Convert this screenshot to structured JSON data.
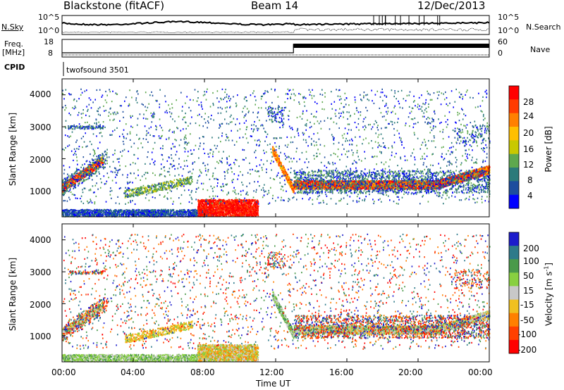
{
  "header": {
    "station": "Blackstone (fitACF)",
    "beam": "Beam 14",
    "date": "12/Dec/2013"
  },
  "left_labels": {
    "nsky": "N.Sky",
    "freq_line1": "Freq.",
    "freq_line2": "[MHz]",
    "cpid": "CPID"
  },
  "right_labels": {
    "nsearch": "N.Search",
    "nave": "Nave"
  },
  "noise_panel": {
    "left_ticks": [
      "10^5",
      "10^0"
    ],
    "right_ticks": [
      "10^5",
      "10^0"
    ]
  },
  "freq_panel": {
    "left_ticks": [
      "18",
      "8"
    ],
    "right_ticks": [
      "60",
      "0"
    ]
  },
  "cpid_text": "twofsound 3501",
  "chart_data": [
    {
      "type": "heatmap",
      "name": "power",
      "ylabel": "Slant Range [km]",
      "ylim": [
        180,
        4500
      ],
      "yticks": [
        "4000",
        "3000",
        "2000",
        "1000"
      ],
      "colorbar": {
        "label": "Power [dB]",
        "ticks": [
          "28",
          "24",
          "20",
          "16",
          "12",
          "8",
          "4"
        ],
        "colors": [
          "#ff0000",
          "#ff3c00",
          "#ff8000",
          "#ffbf00",
          "#c8c800",
          "#5ea84e",
          "#2b7a7a",
          "#1d4d9e",
          "#0000ff"
        ]
      }
    },
    {
      "type": "heatmap",
      "name": "velocity",
      "ylabel": "Slant Range [km]",
      "ylim": [
        180,
        4500
      ],
      "yticks": [
        "4000",
        "3000",
        "2000",
        "1000"
      ],
      "xlabel": "Time UT",
      "xticks": [
        "00:00",
        "04:00",
        "08:00",
        "12:00",
        "16:00",
        "20:00",
        "00:00"
      ],
      "colorbar": {
        "label": "Velocity [m s",
        "label_sup": "-1",
        "label_end": "]",
        "ticks": [
          "200",
          "100",
          "50",
          "15",
          "-15",
          "-50",
          "-100",
          "-200"
        ],
        "colors": [
          "#1c1ccc",
          "#2e7a8a",
          "#4a9a4a",
          "#88d040",
          "#c8c8c8",
          "#f0c020",
          "#ff8000",
          "#ff4000",
          "#ff0000"
        ]
      }
    }
  ]
}
